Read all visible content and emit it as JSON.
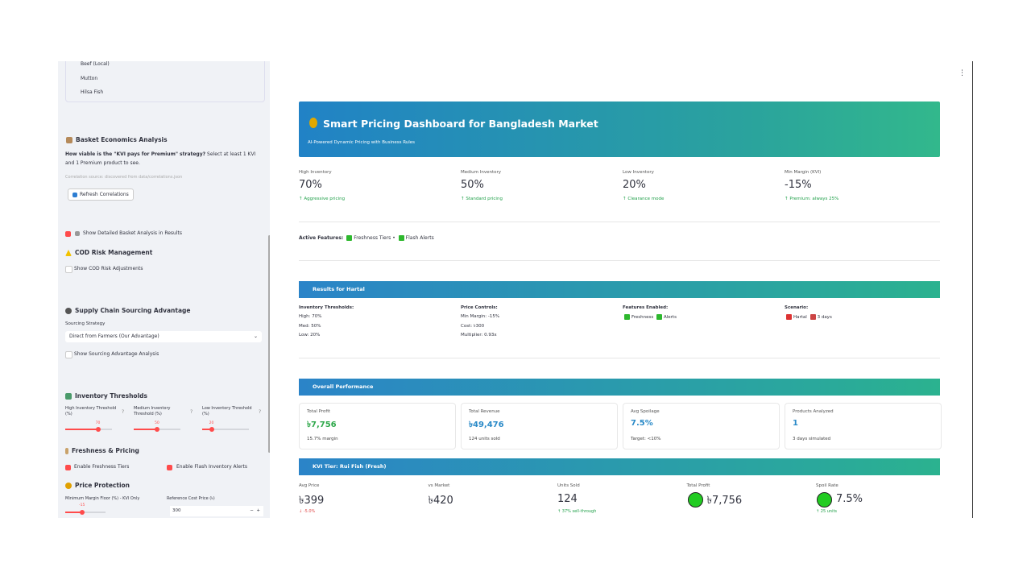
{
  "sidebar": {
    "product_list": [
      "Beef (Local)",
      "Mutton",
      "Hilsa Fish"
    ],
    "basket": {
      "title": "Basket Economics Analysis",
      "question": "How viable is the \"KVI pays for Premium\" strategy?",
      "instruction": "Select at least 1 KVI and 1 Premium product to see.",
      "source": "Correlation source: discovered from data/correlations.json",
      "button": "Refresh Correlations",
      "checkbox": "Show Detailed Basket Analysis in Results"
    },
    "cod": {
      "title": "COD Risk Management",
      "checkbox": "Show COD Risk Adjustments"
    },
    "supply": {
      "title": "Supply Chain Sourcing Advantage",
      "label": "Sourcing Strategy",
      "selected": "Direct from Farmers (Our Advantage)",
      "checkbox": "Show Sourcing Advantage Analysis"
    },
    "thresholds": {
      "title": "Inventory Thresholds",
      "sliders": [
        {
          "label": "High Inventory Threshold (%)",
          "value": 70
        },
        {
          "label": "Medium Inventory Threshold (%)",
          "value": 50
        },
        {
          "label": "Low Inventory Threshold (%)",
          "value": 20
        }
      ]
    },
    "freshness": {
      "title": "Freshness & Pricing",
      "checkboxes": [
        "Enable Freshness Tiers",
        "Enable Flash Inventory Alerts"
      ]
    },
    "protection": {
      "title": "Price Protection",
      "margin_label": "Minimum Margin Floor (%) - KVI Only",
      "margin_value": -15,
      "cost_label": "Reference Cost Price (৳)",
      "cost_value": 300
    }
  },
  "header": {
    "title": "Smart Pricing Dashboard for Bangladesh Market",
    "subtitle": "AI-Powered Dynamic Pricing with Business Rules"
  },
  "metrics": [
    {
      "label": "High Inventory",
      "value": "70%",
      "delta": "Aggressive pricing"
    },
    {
      "label": "Medium Inventory",
      "value": "50%",
      "delta": "Standard pricing"
    },
    {
      "label": "Low Inventory",
      "value": "20%",
      "delta": "Clearance mode"
    },
    {
      "label": "Min Margin (KVI)",
      "value": "-15%",
      "delta": "Premium: always 25%"
    }
  ],
  "active_features": {
    "label": "Active Features:",
    "items": [
      "Freshness Tiers",
      "Flash Alerts"
    ]
  },
  "results": {
    "title": "Results for Hartal",
    "columns": [
      {
        "heading": "Inventory Thresholds:",
        "lines": [
          "High: 70%",
          "Med: 50%",
          "Low: 20%"
        ]
      },
      {
        "heading": "Price Controls:",
        "lines": [
          "Min Margin: -15%",
          "Cost: ৳300",
          "Multiplier: 0.93x"
        ]
      },
      {
        "heading": "Features Enabled:",
        "lines": [
          "Freshness",
          "Alerts"
        ]
      },
      {
        "heading": "Scenario:",
        "lines": [
          "Hartal",
          "3 days"
        ]
      }
    ]
  },
  "overall": {
    "title": "Overall Performance",
    "cards": [
      {
        "label": "Total Profit",
        "value": "৳7,756",
        "note": "15.7% margin"
      },
      {
        "label": "Total Revenue",
        "value": "৳49,476",
        "note": "124 units sold"
      },
      {
        "label": "Avg Spoilage",
        "value": "7.5%",
        "note": "Target: <10%"
      },
      {
        "label": "Products Analyzed",
        "value": "1",
        "note": "3 days simulated"
      }
    ]
  },
  "kvi": {
    "title": "KVI Tier: Rui Fish (Fresh)",
    "metrics": [
      {
        "label": "Avg Price",
        "value": "৳399",
        "delta": "-5.0%"
      },
      {
        "label": "vs Market",
        "value": "৳420"
      },
      {
        "label": "Units Sold",
        "value": "124",
        "delta": "37% sell-through"
      },
      {
        "label": "Total Profit",
        "value": "৳7,756"
      },
      {
        "label": "Spoil Rate",
        "value": "7.5%",
        "delta": "25 units"
      }
    ]
  }
}
